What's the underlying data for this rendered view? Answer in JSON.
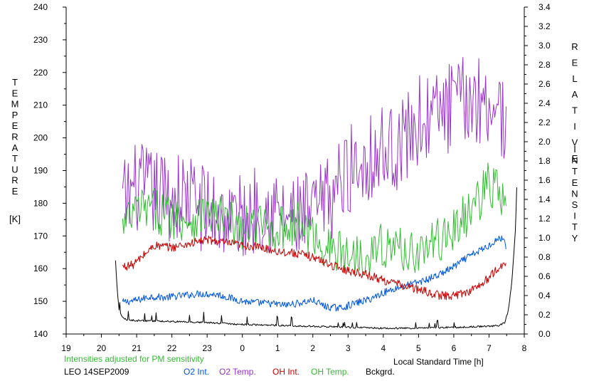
{
  "chart_data": {
    "type": "line",
    "title": "",
    "xlabel": "Local Standard Time [h]",
    "ylabel_left_letters": [
      "T",
      "E",
      "M",
      "P",
      "E",
      "R",
      "A",
      "T",
      "U",
      "R",
      "E"
    ],
    "ylabel_left_unit": "[K]",
    "ylabel_right_word1": [
      "R",
      "E",
      "L",
      "A",
      "T",
      "I",
      "V",
      "E"
    ],
    "ylabel_right_word2": [
      "I",
      "N",
      "T",
      "E",
      "N",
      "S",
      "I",
      "T",
      "Y"
    ],
    "note": "Intensities adjusted for PM sensitivity",
    "station": "LEO 14SEP2009",
    "x_range": [
      19,
      32
    ],
    "x_ticks": [
      19,
      20,
      21,
      22,
      23,
      24,
      25,
      26,
      27,
      28,
      29,
      30,
      31,
      32
    ],
    "x_tick_labels": [
      "19",
      "20",
      "21",
      "22",
      "23",
      "0",
      "1",
      "2",
      "3",
      "4",
      "5",
      "6",
      "7",
      "8"
    ],
    "y_left_range": [
      140,
      240
    ],
    "y_left_ticks": [
      "140",
      "150",
      "160",
      "170",
      "180",
      "190",
      "200",
      "210",
      "220",
      "230",
      "240"
    ],
    "y_right_range": [
      0,
      3.4
    ],
    "y_right_ticks": [
      "0.0",
      "0.2",
      "0.4",
      "0.6",
      "0.8",
      "1.0",
      "1.2",
      "1.4",
      "1.6",
      "1.8",
      "2.0",
      "2.2",
      "2.4",
      "2.6",
      "2.8",
      "3.0",
      "3.2",
      "3.4"
    ],
    "grid": false,
    "legend_placement": "bottom",
    "series": [
      {
        "name": "O2 Int.",
        "axis": "right",
        "color": "#0055dd",
        "noise": 0.025,
        "x": [
          20.6,
          21.0,
          21.4,
          21.8,
          22.3,
          22.8,
          23.3,
          23.8,
          24.2,
          24.7,
          25.2,
          25.6,
          26.0,
          26.4,
          26.8,
          27.2,
          27.6,
          28.0,
          28.4,
          28.8,
          29.2,
          29.6,
          30.0,
          30.4,
          30.7,
          31.0,
          31.2,
          31.4,
          31.5
        ],
        "y": [
          0.33,
          0.35,
          0.39,
          0.38,
          0.4,
          0.42,
          0.41,
          0.36,
          0.33,
          0.32,
          0.3,
          0.32,
          0.35,
          0.28,
          0.27,
          0.32,
          0.36,
          0.43,
          0.48,
          0.52,
          0.56,
          0.62,
          0.7,
          0.8,
          0.86,
          0.92,
          0.98,
          1.0,
          0.9
        ]
      },
      {
        "name": "O2 Temp.",
        "axis": "left",
        "color": "#9933cc",
        "noise": 14,
        "x": [
          20.6,
          21.0,
          21.5,
          22.0,
          22.5,
          23.0,
          23.5,
          24.0,
          24.5,
          25.0,
          25.5,
          26.0,
          26.5,
          27.0,
          27.5,
          28.0,
          28.5,
          29.0,
          29.5,
          30.0,
          30.5,
          31.0,
          31.3,
          31.5
        ],
        "y": [
          180,
          185,
          183,
          182,
          182,
          178,
          176,
          175,
          180,
          177,
          175,
          176,
          182,
          190,
          194,
          196,
          198,
          205,
          207,
          210,
          212,
          212,
          208,
          205
        ]
      },
      {
        "name": "OH Int.",
        "axis": "right",
        "color": "#cc0000",
        "noise": 0.03,
        "x": [
          20.6,
          20.9,
          21.2,
          21.5,
          22.0,
          22.5,
          23.0,
          23.5,
          24.0,
          24.5,
          25.0,
          25.5,
          26.0,
          26.5,
          27.0,
          27.5,
          28.0,
          28.4,
          28.8,
          29.2,
          29.6,
          30.0,
          30.4,
          30.8,
          31.2,
          31.5
        ],
        "y": [
          0.7,
          0.72,
          0.82,
          0.92,
          0.9,
          0.94,
          0.98,
          0.95,
          0.92,
          0.9,
          0.86,
          0.84,
          0.8,
          0.72,
          0.66,
          0.62,
          0.56,
          0.52,
          0.48,
          0.44,
          0.4,
          0.4,
          0.44,
          0.52,
          0.66,
          0.74
        ]
      },
      {
        "name": "OH Temp.",
        "axis": "left",
        "color": "#33bb33",
        "noise": 7,
        "x": [
          20.6,
          21.0,
          21.5,
          22.0,
          22.5,
          23.0,
          23.5,
          24.0,
          24.5,
          25.0,
          25.5,
          26.0,
          26.5,
          27.0,
          27.5,
          28.0,
          28.5,
          29.0,
          29.5,
          30.0,
          30.5,
          31.0,
          31.3,
          31.5
        ],
        "y": [
          172,
          178,
          178,
          176,
          175,
          177,
          175,
          172,
          173,
          172,
          174,
          170,
          166,
          164,
          165,
          167,
          166,
          165,
          168,
          172,
          178,
          186,
          183,
          176
        ]
      },
      {
        "name": "Bckgrd.",
        "axis": "right",
        "color": "#000000",
        "noise": 0.006,
        "x": [
          20.4,
          20.45,
          20.5,
          20.6,
          20.7,
          21.0,
          22.0,
          23.0,
          24.0,
          25.0,
          26.0,
          27.0,
          28.0,
          29.0,
          30.0,
          31.0,
          31.3,
          31.45,
          31.55,
          31.65,
          31.75,
          31.8
        ],
        "y": [
          0.76,
          0.45,
          0.25,
          0.17,
          0.15,
          0.14,
          0.13,
          0.12,
          0.1,
          0.09,
          0.08,
          0.07,
          0.06,
          0.06,
          0.07,
          0.08,
          0.09,
          0.12,
          0.25,
          0.55,
          1.1,
          1.7
        ]
      }
    ]
  }
}
